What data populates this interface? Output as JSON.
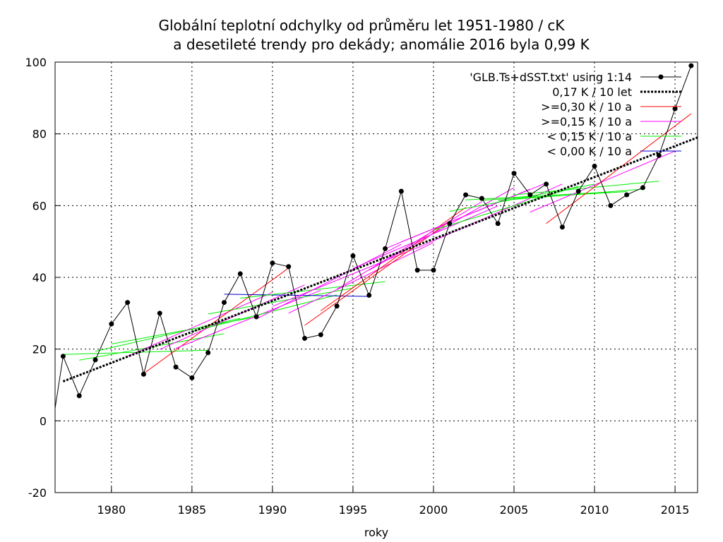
{
  "chart_data": {
    "type": "line",
    "title": [
      "Globální teplotní odchylky od průměru let 1951-1980 / cK",
      " a desetileté trendy pro dekády; anomálie 2016 byla 0,99 K"
    ],
    "xlabel": "roky",
    "ylabel": "",
    "xlim": [
      1976.5,
      2016.4
    ],
    "ylim": [
      -20,
      100
    ],
    "x_ticks": [
      1980,
      1985,
      1990,
      1995,
      2000,
      2005,
      2010,
      2015
    ],
    "x_tick_labels": [
      "1980",
      "1985",
      "1990",
      "1995",
      "2000",
      "2005",
      "2010",
      "2015"
    ],
    "y_ticks": [
      -20,
      0,
      20,
      40,
      60,
      80,
      100
    ],
    "y_tick_labels": [
      "-20",
      "0",
      "20",
      "40",
      "60",
      "80",
      "100"
    ],
    "grid": true,
    "legend_position": "top-right",
    "colors": {
      "data": "#000000",
      "overall_trend": "#000000",
      "ge030": "#ff0000",
      "ge015": "#ff00ff",
      "lt015": "#00ee00",
      "lt000": "#0000cc"
    },
    "legend": [
      {
        "label": "'GLB.Ts+dSST.txt' using 1:14",
        "key": "data",
        "style": "linepoints"
      },
      {
        "label": "0,17 K / 10 let",
        "key": "overall_trend",
        "style": "dotted"
      },
      {
        "label": ">=0,30 K / 10 a",
        "key": "ge030",
        "style": "line"
      },
      {
        "label": ">=0,15 K / 10 a",
        "key": "ge015",
        "style": "line"
      },
      {
        "label": "< 0,15 K / 10 a",
        "key": "lt015",
        "style": "line"
      },
      {
        "label": "< 0,00 K / 10 a",
        "key": "lt000",
        "style": "line"
      }
    ],
    "series": [
      {
        "name": "'GLB.Ts+dSST.txt' using 1:14",
        "x": [
          1976,
          1977,
          1978,
          1979,
          1980,
          1981,
          1982,
          1983,
          1984,
          1985,
          1986,
          1987,
          1988,
          1989,
          1990,
          1991,
          1992,
          1993,
          1994,
          1995,
          1996,
          1997,
          1998,
          1999,
          2000,
          2001,
          2002,
          2003,
          2004,
          2005,
          2006,
          2007,
          2008,
          2009,
          2010,
          2011,
          2012,
          2013,
          2014,
          2015,
          2016
        ],
        "values": [
          -11,
          18,
          7,
          17,
          27,
          33,
          13,
          30,
          15,
          12,
          19,
          33,
          41,
          29,
          44,
          43,
          23,
          24,
          32,
          46,
          35,
          48,
          64,
          42,
          42,
          55,
          63,
          62,
          55,
          69,
          63,
          66,
          54,
          64,
          71,
          60,
          63,
          65,
          74,
          87,
          99
        ]
      }
    ],
    "overall_trend": {
      "name": "0,17 K / 10 let",
      "x": [
        1977,
        2016.4
      ],
      "values": [
        11,
        79
      ]
    },
    "decadal_trends": [
      {
        "x": [
          1977,
          1986
        ],
        "values": [
          18.5,
          19.7
        ],
        "category": "lt015"
      },
      {
        "x": [
          1978,
          1987
        ],
        "values": [
          16.9,
          24.3
        ],
        "category": "lt015"
      },
      {
        "x": [
          1979,
          1988
        ],
        "values": [
          19.4,
          28.6
        ],
        "category": "lt015"
      },
      {
        "x": [
          1980,
          1989
        ],
        "values": [
          21.4,
          29.0
        ],
        "category": "lt015"
      },
      {
        "x": [
          1981,
          1990
        ],
        "values": [
          18.0,
          35.8
        ],
        "category": "ge015"
      },
      {
        "x": [
          1982,
          1991
        ],
        "values": [
          13.2,
          42.6
        ],
        "category": "ge030"
      },
      {
        "x": [
          1983,
          1992
        ],
        "values": [
          19.9,
          37.9
        ],
        "category": "ge015"
      },
      {
        "x": [
          1984,
          1993
        ],
        "values": [
          20.2,
          36.4
        ],
        "category": "ge015"
      },
      {
        "x": [
          1985,
          1994
        ],
        "values": [
          24.9,
          35.1
        ],
        "category": "lt015"
      },
      {
        "x": [
          1986,
          1995
        ],
        "values": [
          29.8,
          37.0
        ],
        "category": "lt015"
      },
      {
        "x": [
          1987,
          1996
        ],
        "values": [
          35.3,
          34.7
        ],
        "category": "lt000"
      },
      {
        "x": [
          1988,
          1997
        ],
        "values": [
          34.2,
          38.8
        ],
        "category": "lt015"
      },
      {
        "x": [
          1989,
          1998
        ],
        "values": [
          28.4,
          49.2
        ],
        "category": "ge015"
      },
      {
        "x": [
          1990,
          1999
        ],
        "values": [
          31.9,
          48.3
        ],
        "category": "ge015"
      },
      {
        "x": [
          1991,
          2000
        ],
        "values": [
          30.0,
          49.7
        ],
        "category": "ge015"
      },
      {
        "x": [
          1992,
          2001
        ],
        "values": [
          26.6,
          55.6
        ],
        "category": "ge030"
      },
      {
        "x": [
          1993,
          2002
        ],
        "values": [
          30.7,
          59.5
        ],
        "category": "ge030"
      },
      {
        "x": [
          1994,
          2003
        ],
        "values": [
          36.7,
          61.1
        ],
        "category": "ge015"
      },
      {
        "x": [
          1995,
          2004
        ],
        "values": [
          42.5,
          59.9
        ],
        "category": "ge015"
      },
      {
        "x": [
          1996,
          2005
        ],
        "values": [
          42.0,
          65.0
        ],
        "category": "ge015"
      },
      {
        "x": [
          1997,
          2006
        ],
        "values": [
          48.0,
          64.6
        ],
        "category": "ge015"
      },
      {
        "x": [
          1998,
          2007
        ],
        "values": [
          49.9,
          66.3
        ],
        "category": "ge015"
      },
      {
        "x": [
          1999,
          2008
        ],
        "values": [
          48.2,
          66.0
        ],
        "category": "ge015"
      },
      {
        "x": [
          2000,
          2009
        ],
        "values": [
          53.2,
          65.4
        ],
        "category": "lt015"
      },
      {
        "x": [
          2001,
          2010
        ],
        "values": [
          58.4,
          66.0
        ],
        "category": "lt015"
      },
      {
        "x": [
          2002,
          2011
        ],
        "values": [
          61.6,
          63.8
        ],
        "category": "lt015"
      },
      {
        "x": [
          2003,
          2012
        ],
        "values": [
          61.5,
          63.9
        ],
        "category": "lt015"
      },
      {
        "x": [
          2004,
          2013
        ],
        "values": [
          61.4,
          64.6
        ],
        "category": "lt015"
      },
      {
        "x": [
          2005,
          2014
        ],
        "values": [
          63.0,
          66.8
        ],
        "category": "lt015"
      },
      {
        "x": [
          2006,
          2015
        ],
        "values": [
          58.2,
          75.2
        ],
        "category": "ge015"
      },
      {
        "x": [
          2007,
          2016
        ],
        "values": [
          55.0,
          85.6
        ],
        "category": "ge030"
      }
    ]
  }
}
